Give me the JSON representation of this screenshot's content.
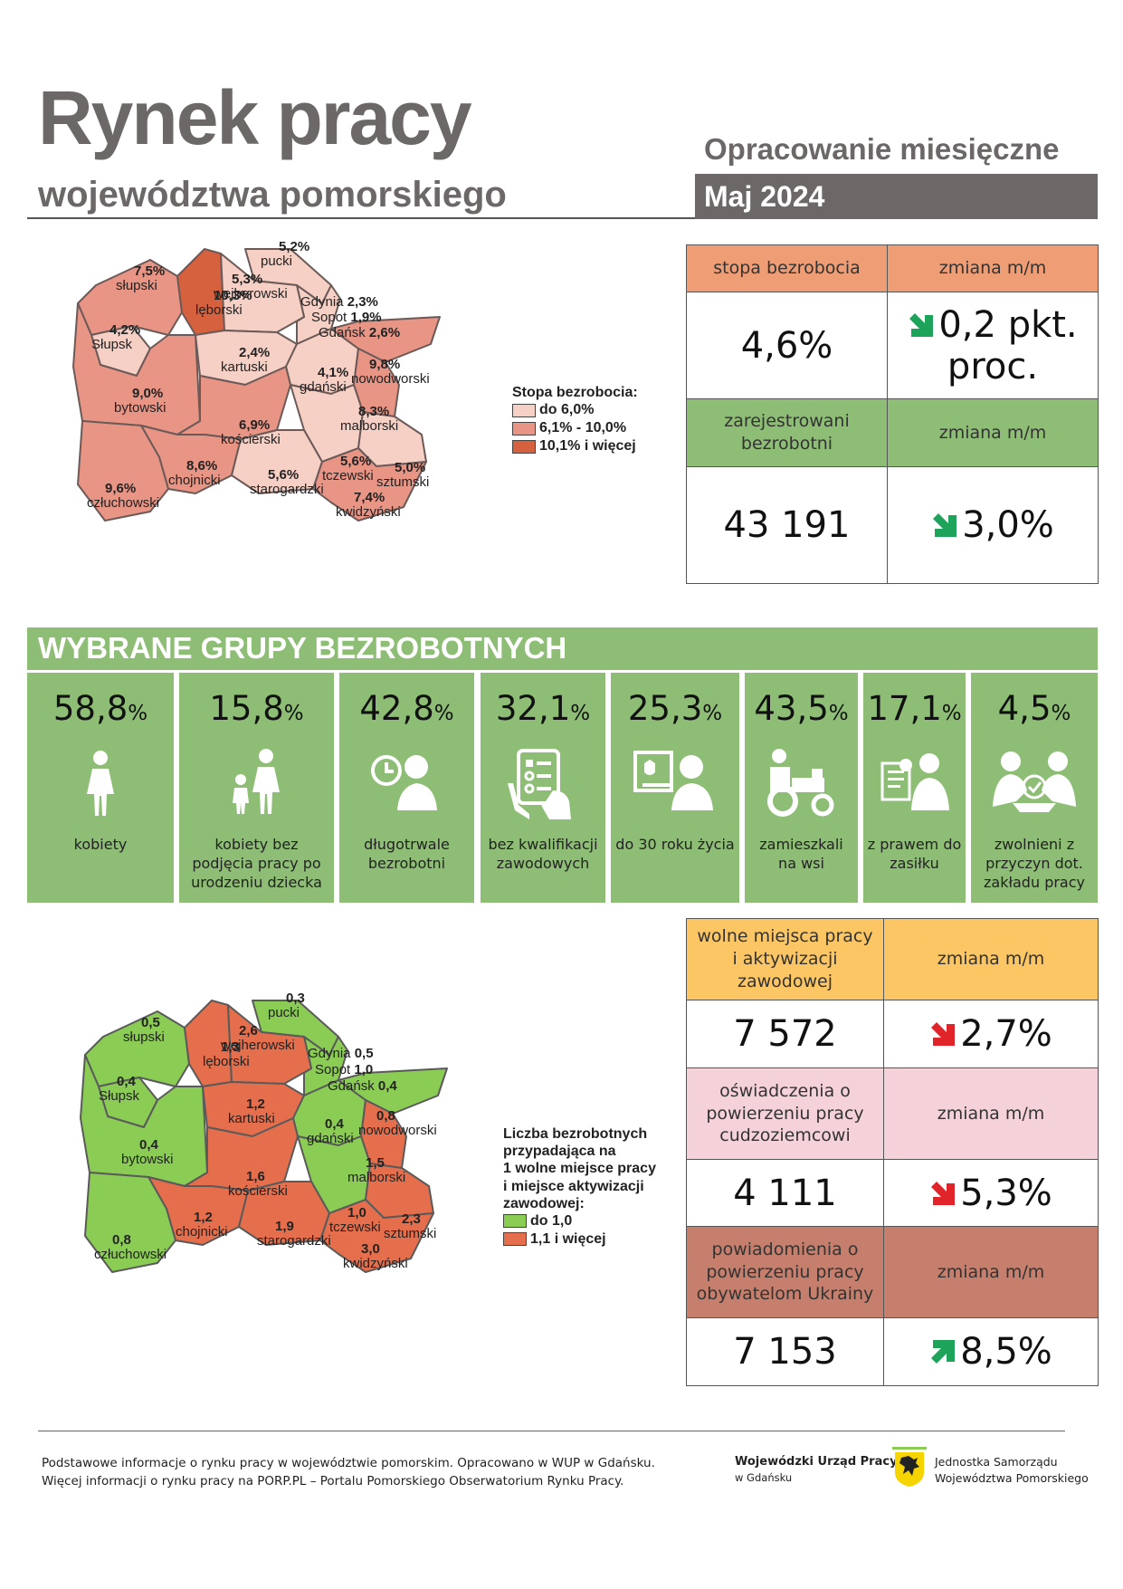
{
  "header": {
    "title": "Rynek pracy",
    "subtitle": "województwa pomorskiego",
    "period_label": "Opracowanie miesięczne",
    "month": "Maj 2024"
  },
  "colors": {
    "grey": "#6d6868",
    "orange": "#ef9d75",
    "green": "#8ebd76",
    "yellow": "#fcc664",
    "pink": "#f5d2da",
    "brown": "#c57f6c",
    "arrow_green": "#1ea35a",
    "arrow_red": "#e0242a",
    "map_light": "#f6cfc5",
    "map_mid": "#e99585",
    "map_dark": "#d5613f",
    "map2_green": "#8bcc55",
    "map2_red": "#e56f4c"
  },
  "stats_top": {
    "unemployment_rate_header": "stopa bezrobocia",
    "unemployment_rate_change_header": "zmiana m/m",
    "unemployment_rate": "4,6%",
    "unemployment_rate_change_line1": "0,2 pkt.",
    "unemployment_rate_change_line2": "proc.",
    "unemployment_rate_change_direction": "down",
    "registered_header": "zarejestrowani bezrobotni",
    "registered_change_header": "zmiana m/m",
    "registered": "43 191",
    "registered_change": "3,0%",
    "registered_change_direction": "down"
  },
  "groups": {
    "title": "WYBRANE GRUPY BEZROBOTNYCH",
    "items": [
      {
        "value": "58,8",
        "pct": "%",
        "label": "kobiety",
        "icon": "woman-icon"
      },
      {
        "value": "15,8",
        "pct": "%",
        "label": "kobiety bez podjęcia pracy po urodzeniu dziecka",
        "icon": "mother-child-icon"
      },
      {
        "value": "42,8",
        "pct": "%",
        "label": "długotrwale bezrobotni",
        "icon": "clock-person-icon"
      },
      {
        "value": "32,1",
        "pct": "%",
        "label": "bez kwalifikacji zawodowych",
        "icon": "tablet-hand-icon"
      },
      {
        "value": "25,3",
        "pct": "%",
        "label": "do 30 roku życia",
        "icon": "young-person-icon"
      },
      {
        "value": "43,5",
        "pct": "%",
        "label": "zamieszkali na wsi",
        "icon": "tractor-icon"
      },
      {
        "value": "17,1",
        "pct": "%",
        "label": "z prawem do zasiłku",
        "icon": "benefit-document-icon"
      },
      {
        "value": "4,5",
        "pct": "%",
        "label": "zwolnieni z przyczyn dot. zakładu pracy",
        "icon": "handshake-icon"
      }
    ]
  },
  "stats_bottom": {
    "vacancies_header": "wolne miejsca pracy i aktywizacji zawodowej",
    "vacancies_change_header": "zmiana m/m",
    "vacancies": "7 572",
    "vacancies_change": "2,7%",
    "vacancies_change_direction": "down",
    "declarations_header": "oświadczenia o powierzeniu pracy cudzoziemcowi",
    "declarations_change_header": "zmiana m/m",
    "declarations": "4 111",
    "declarations_change": "5,3%",
    "declarations_change_direction": "down",
    "notifications_header": "powiadomienia o powierzeniu pracy obywatelom Ukrainy",
    "notifications_change_header": "zmiana m/m",
    "notifications": "7 153",
    "notifications_change": "8,5%",
    "notifications_change_direction": "up"
  },
  "map1": {
    "legend_title": "Stopa bezrobocia:",
    "legend": [
      {
        "label": "do 6,0%",
        "class": "light"
      },
      {
        "label": "6,1% - 10,0%",
        "class": "mid"
      },
      {
        "label": "10,1% i więcej",
        "class": "dark"
      }
    ],
    "districts": [
      {
        "name": "słupski",
        "value": "7,5%",
        "class": "mid"
      },
      {
        "name": "lęborski",
        "value": "10,3%",
        "class": "dark"
      },
      {
        "name": "pucki",
        "value": "5,2%",
        "class": "light"
      },
      {
        "name": "wejherowski",
        "value": "5,3%",
        "class": "light"
      },
      {
        "name": "Słupsk",
        "value": "4,2%",
        "class": "light"
      },
      {
        "name": "bytowski",
        "value": "9,0%",
        "class": "mid"
      },
      {
        "name": "kartuski",
        "value": "2,4%",
        "class": "light"
      },
      {
        "name": "gdański",
        "value": "4,1%",
        "class": "light"
      },
      {
        "name": "nowodworski",
        "value": "9,8%",
        "class": "mid"
      },
      {
        "name": "kościerski",
        "value": "6,9%",
        "class": "mid"
      },
      {
        "name": "malborski",
        "value": "8,3%",
        "class": "mid"
      },
      {
        "name": "tczewski",
        "value": "5,6%",
        "class": "light"
      },
      {
        "name": "sztumski",
        "value": "5,0%",
        "class": "light"
      },
      {
        "name": "chojnicki",
        "value": "8,6%",
        "class": "mid"
      },
      {
        "name": "starogardzki",
        "value": "5,6%",
        "class": "light"
      },
      {
        "name": "człuchowski",
        "value": "9,6%",
        "class": "mid"
      },
      {
        "name": "kwidzyński",
        "value": "7,4%",
        "class": "mid"
      }
    ],
    "cities": [
      {
        "name": "Gdynia",
        "value": "2,3%"
      },
      {
        "name": "Sopot",
        "value": "1,9%"
      },
      {
        "name": "Gdańsk",
        "value": "2,6%"
      }
    ]
  },
  "map2": {
    "legend_title_lines": [
      "Liczba bezrobotnych",
      "przypadająca na",
      "1 wolne miejsce pracy",
      "i miejsce aktywizacji",
      "zawodowej:"
    ],
    "legend": [
      {
        "label": "do 1,0",
        "class": "green"
      },
      {
        "label": "1,1 i więcej",
        "class": "red"
      }
    ],
    "districts": [
      {
        "name": "słupski",
        "value": "0,5",
        "class": "green"
      },
      {
        "name": "lęborski",
        "value": "1,3",
        "class": "red"
      },
      {
        "name": "pucki",
        "value": "0,3",
        "class": "green"
      },
      {
        "name": "wejherowski",
        "value": "2,6",
        "class": "red"
      },
      {
        "name": "Słupsk",
        "value": "0,4",
        "class": "green"
      },
      {
        "name": "bytowski",
        "value": "0,4",
        "class": "green"
      },
      {
        "name": "kartuski",
        "value": "1,2",
        "class": "red"
      },
      {
        "name": "gdański",
        "value": "0,4",
        "class": "green"
      },
      {
        "name": "nowodworski",
        "value": "0,8",
        "class": "green"
      },
      {
        "name": "kościerski",
        "value": "1,6",
        "class": "red"
      },
      {
        "name": "malborski",
        "value": "1,5",
        "class": "red"
      },
      {
        "name": "tczewski",
        "value": "1,0",
        "class": "green"
      },
      {
        "name": "sztumski",
        "value": "2,3",
        "class": "red"
      },
      {
        "name": "chojnicki",
        "value": "1,2",
        "class": "red"
      },
      {
        "name": "starogardzki",
        "value": "1,9",
        "class": "red"
      },
      {
        "name": "człuchowski",
        "value": "0,8",
        "class": "green"
      },
      {
        "name": "kwidzyński",
        "value": "3,0",
        "class": "red"
      }
    ],
    "cities": [
      {
        "name": "Gdynia",
        "value": "0,5"
      },
      {
        "name": "Sopot",
        "value": "1,0"
      },
      {
        "name": "Gdańsk",
        "value": "0,4"
      }
    ]
  },
  "footer": {
    "note_line1": "Podstawowe informacje o rynku pracy w województwie pomorskim. Opracowano w WUP w Gdańsku.",
    "note_line2": "Więcej informacji o rynku pracy na PORP.PL – Portalu Pomorskiego Obserwatorium Rynku Pracy.",
    "wup_name": "Wojewódzki Urząd Pracy",
    "wup_city": "w Gdańsku",
    "jst_line1": "Jednostka Samorządu",
    "jst_line2": "Województwa Pomorskiego"
  }
}
